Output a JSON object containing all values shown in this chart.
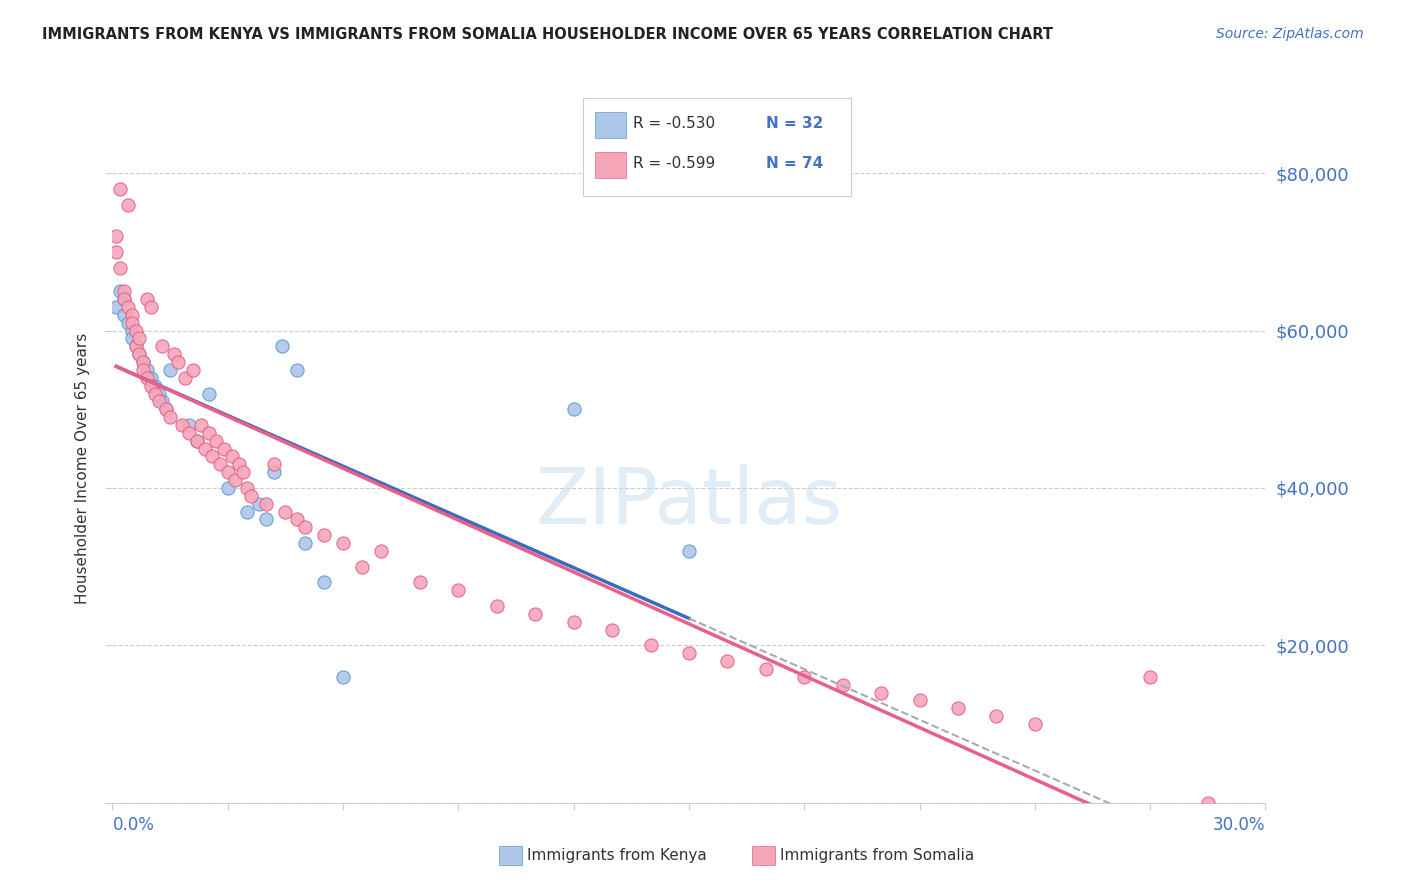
{
  "title": "IMMIGRANTS FROM KENYA VS IMMIGRANTS FROM SOMALIA HOUSEHOLDER INCOME OVER 65 YEARS CORRELATION CHART",
  "source": "Source: ZipAtlas.com",
  "ylabel": "Householder Income Over 65 years",
  "legend_kenya": "Immigrants from Kenya",
  "legend_somalia": "Immigrants from Somalia",
  "kenya_R": "R = -0.530",
  "kenya_N": "N = 32",
  "somalia_R": "R = -0.599",
  "somalia_N": "N = 74",
  "kenya_color": "#aec6e8",
  "kenya_color_dark": "#5b9bd5",
  "somalia_color": "#f4a7b9",
  "somalia_color_dark": "#e8608a",
  "kenya_line_color": "#3a6bbf",
  "somalia_line_color": "#e8608a",
  "background_color": "#ffffff",
  "xlim": [
    0.0,
    0.3
  ],
  "ylim": [
    0,
    85000
  ],
  "kenya_x": [
    0.001,
    0.002,
    0.003,
    0.003,
    0.004,
    0.005,
    0.005,
    0.006,
    0.007,
    0.008,
    0.009,
    0.01,
    0.011,
    0.012,
    0.013,
    0.014,
    0.015,
    0.02,
    0.022,
    0.025,
    0.03,
    0.035,
    0.038,
    0.04,
    0.042,
    0.044,
    0.048,
    0.05,
    0.055,
    0.06,
    0.12,
    0.15
  ],
  "kenya_y": [
    63000,
    65000,
    64000,
    62000,
    61000,
    60000,
    59000,
    58000,
    57000,
    56000,
    55000,
    54000,
    53000,
    52000,
    51000,
    50000,
    55000,
    48000,
    46000,
    52000,
    40000,
    37000,
    38000,
    36000,
    42000,
    58000,
    55000,
    33000,
    28000,
    16000,
    50000,
    32000
  ],
  "somalia_x": [
    0.001,
    0.001,
    0.002,
    0.002,
    0.003,
    0.003,
    0.004,
    0.004,
    0.005,
    0.005,
    0.006,
    0.006,
    0.007,
    0.007,
    0.008,
    0.008,
    0.009,
    0.009,
    0.01,
    0.01,
    0.011,
    0.012,
    0.013,
    0.014,
    0.015,
    0.016,
    0.017,
    0.018,
    0.019,
    0.02,
    0.021,
    0.022,
    0.023,
    0.024,
    0.025,
    0.026,
    0.027,
    0.028,
    0.029,
    0.03,
    0.031,
    0.032,
    0.033,
    0.034,
    0.035,
    0.036,
    0.04,
    0.042,
    0.045,
    0.048,
    0.05,
    0.055,
    0.06,
    0.065,
    0.07,
    0.08,
    0.09,
    0.1,
    0.11,
    0.12,
    0.13,
    0.14,
    0.15,
    0.16,
    0.17,
    0.18,
    0.19,
    0.2,
    0.21,
    0.22,
    0.23,
    0.24,
    0.27,
    0.285
  ],
  "somalia_y": [
    72000,
    70000,
    78000,
    68000,
    65000,
    64000,
    63000,
    76000,
    62000,
    61000,
    60000,
    58000,
    59000,
    57000,
    56000,
    55000,
    64000,
    54000,
    63000,
    53000,
    52000,
    51000,
    58000,
    50000,
    49000,
    57000,
    56000,
    48000,
    54000,
    47000,
    55000,
    46000,
    48000,
    45000,
    47000,
    44000,
    46000,
    43000,
    45000,
    42000,
    44000,
    41000,
    43000,
    42000,
    40000,
    39000,
    38000,
    43000,
    37000,
    36000,
    35000,
    34000,
    33000,
    30000,
    32000,
    28000,
    27000,
    25000,
    24000,
    23000,
    22000,
    20000,
    19000,
    18000,
    17000,
    16000,
    15000,
    14000,
    13000,
    12000,
    11000,
    10000,
    16000,
    0
  ]
}
